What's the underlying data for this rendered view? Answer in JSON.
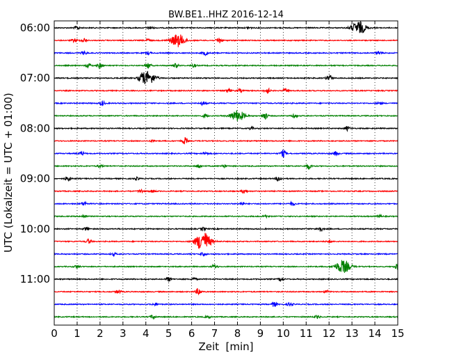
{
  "chart_data": {
    "type": "line",
    "title": "BW.BE1..HHZ 2016-12-14",
    "xlabel": "Zeit  [min]",
    "ylabel": "UTC (Lokalzeit = UTC + 01:00)",
    "xlim": [
      0,
      15
    ],
    "x_ticks": [
      "0",
      "1",
      "2",
      "3",
      "4",
      "5",
      "6",
      "7",
      "8",
      "9",
      "10",
      "11",
      "12",
      "13",
      "14",
      "15"
    ],
    "y_ticks": [
      "06:00",
      "07:00",
      "08:00",
      "09:00",
      "10:00",
      "11:00"
    ],
    "grid": "vertical dotted",
    "trace_colors": [
      "#000000",
      "#ff0000",
      "#0000ff",
      "#008000"
    ],
    "rows_per_hour": 4,
    "minutes_per_row": 15,
    "series": [
      {
        "start": "06:00",
        "events": [
          [
            13.3,
            1.0
          ],
          [
            1.0,
            0.3
          ],
          [
            4.2,
            0.25
          ],
          [
            8.5,
            0.2
          ]
        ]
      },
      {
        "start": "06:15",
        "events": [
          [
            5.4,
            1.0
          ],
          [
            7.2,
            0.5
          ],
          [
            1.3,
            0.35
          ],
          [
            0.9,
            0.3
          ],
          [
            4.1,
            0.25
          ]
        ]
      },
      {
        "start": "06:30",
        "events": [
          [
            1.3,
            0.3
          ],
          [
            6.6,
            0.35
          ],
          [
            14.2,
            0.3
          ],
          [
            4.1,
            0.25
          ]
        ]
      },
      {
        "start": "06:45",
        "events": [
          [
            2.0,
            0.4
          ],
          [
            4.1,
            0.45
          ],
          [
            1.5,
            0.3
          ],
          [
            5.3,
            0.3
          ],
          [
            6.1,
            0.25
          ]
        ]
      },
      {
        "start": "07:00",
        "events": [
          [
            4.1,
            1.0
          ],
          [
            12.0,
            0.6
          ],
          [
            3.8,
            0.45
          ]
        ]
      },
      {
        "start": "07:15",
        "events": [
          [
            9.3,
            0.45
          ],
          [
            7.6,
            0.3
          ],
          [
            10.1,
            0.3
          ],
          [
            8.1,
            0.25
          ]
        ]
      },
      {
        "start": "07:30",
        "events": [
          [
            2.1,
            0.35
          ],
          [
            6.5,
            0.3
          ],
          [
            14.2,
            0.2
          ]
        ]
      },
      {
        "start": "07:45",
        "events": [
          [
            8.0,
            0.85
          ],
          [
            9.2,
            0.55
          ],
          [
            6.6,
            0.3
          ],
          [
            10.5,
            0.25
          ]
        ]
      },
      {
        "start": "08:00",
        "events": [
          [
            12.8,
            0.35
          ],
          [
            8.6,
            0.2
          ]
        ]
      },
      {
        "start": "08:15",
        "events": [
          [
            5.7,
            0.55
          ],
          [
            4.3,
            0.2
          ]
        ]
      },
      {
        "start": "08:30",
        "events": [
          [
            10.0,
            0.55
          ],
          [
            1.2,
            0.3
          ],
          [
            12.3,
            0.3
          ],
          [
            6.6,
            0.2
          ]
        ]
      },
      {
        "start": "08:45",
        "events": [
          [
            11.1,
            0.45
          ],
          [
            2.0,
            0.25
          ],
          [
            6.3,
            0.3
          ],
          [
            7.4,
            0.25
          ]
        ]
      },
      {
        "start": "09:00",
        "events": [
          [
            0.6,
            0.45
          ],
          [
            9.8,
            0.45
          ],
          [
            3.6,
            0.2
          ]
        ]
      },
      {
        "start": "09:15",
        "events": [
          [
            3.8,
            0.3
          ],
          [
            8.3,
            0.35
          ],
          [
            4.3,
            0.2
          ]
        ]
      },
      {
        "start": "09:30",
        "events": [
          [
            1.3,
            0.3
          ],
          [
            10.4,
            0.3
          ],
          [
            8.2,
            0.2
          ]
        ]
      },
      {
        "start": "09:45",
        "events": [
          [
            1.3,
            0.2
          ],
          [
            9.2,
            0.2
          ],
          [
            14.2,
            0.2
          ]
        ]
      },
      {
        "start": "10:00",
        "events": [
          [
            11.6,
            0.45
          ],
          [
            1.4,
            0.25
          ],
          [
            6.5,
            0.25
          ]
        ]
      },
      {
        "start": "10:15",
        "events": [
          [
            6.5,
            1.6
          ],
          [
            1.5,
            0.35
          ],
          [
            12.0,
            0.2
          ]
        ]
      },
      {
        "start": "10:30",
        "events": [
          [
            6.5,
            0.35
          ],
          [
            2.6,
            0.2
          ]
        ]
      },
      {
        "start": "10:45",
        "events": [
          [
            12.6,
            1.0
          ],
          [
            15.0,
            0.5
          ],
          [
            1.0,
            0.25
          ],
          [
            7.0,
            0.3
          ]
        ]
      },
      {
        "start": "11:00",
        "events": [
          [
            5.0,
            0.3
          ],
          [
            6.1,
            0.2
          ],
          [
            9.9,
            0.25
          ]
        ]
      },
      {
        "start": "11:15",
        "events": [
          [
            6.3,
            0.55
          ],
          [
            2.8,
            0.25
          ],
          [
            11.9,
            0.2
          ]
        ]
      },
      {
        "start": "11:30",
        "events": [
          [
            9.6,
            0.4
          ],
          [
            10.3,
            0.3
          ],
          [
            4.4,
            0.2
          ]
        ]
      },
      {
        "start": "11:45",
        "events": [
          [
            4.3,
            0.3
          ],
          [
            11.5,
            0.25
          ],
          [
            6.7,
            0.2
          ]
        ]
      }
    ]
  }
}
